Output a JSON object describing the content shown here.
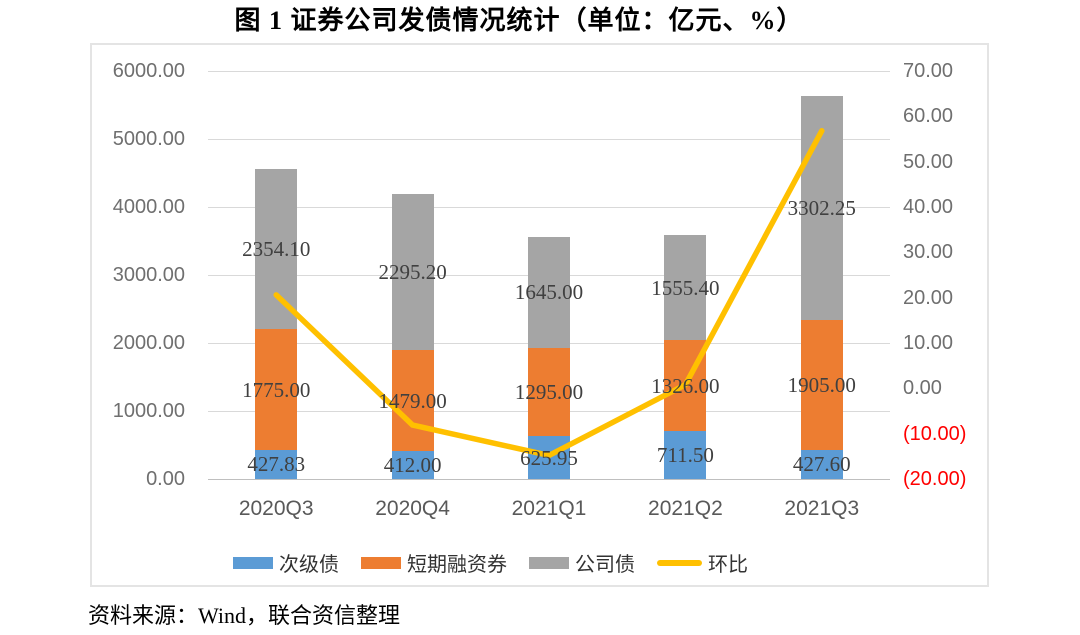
{
  "title": "图 1  证券公司发债情况统计（单位：亿元、%）",
  "source_note": "资料来源：Wind，联合资信整理",
  "colors": {
    "subordinated_debt_blue": "#5B9BD5",
    "short_term_notes_orange": "#ED7D31",
    "corporate_bonds_gray": "#A5A5A5",
    "mom_line_yellow": "#FFC000",
    "negative_tick_red": "#FF0000",
    "gridline": "#D9D9D9",
    "axis_line": "#BFBFBF",
    "axis_text": "#6F6F6F",
    "data_label_text": "#404040"
  },
  "chart_data": {
    "type": "bar",
    "subtype": "stacked-bars-with-line",
    "title": "图 1  证券公司发债情况统计（单位：亿元、%）",
    "categories": [
      "2020Q3",
      "2020Q4",
      "2021Q1",
      "2021Q2",
      "2021Q3"
    ],
    "series": [
      {
        "name": "次级债",
        "kind": "bar",
        "color": "#5B9BD5",
        "values": [
          427.83,
          412.0,
          625.95,
          711.5,
          427.6
        ],
        "labels": [
          "427.83",
          "412.00",
          "625.95",
          "711.50",
          "427.60"
        ]
      },
      {
        "name": "短期融资券",
        "kind": "bar",
        "color": "#ED7D31",
        "values": [
          1775.0,
          1479.0,
          1295.0,
          1326.0,
          1905.0
        ],
        "labels": [
          "1775.00",
          "1479.00",
          "1295.00",
          "1326.00",
          "1905.00"
        ]
      },
      {
        "name": "公司债",
        "kind": "bar",
        "color": "#A5A5A5",
        "values": [
          2354.1,
          2295.2,
          1645.0,
          1555.4,
          3302.25
        ],
        "labels": [
          "2354.10",
          "2295.20",
          "1645.00",
          "1555.40",
          "3302.25"
        ]
      },
      {
        "name": "环比",
        "kind": "line",
        "color": "#FFC000",
        "values": [
          20.6,
          -8.1,
          -14.8,
          0.8,
          56.8
        ]
      }
    ],
    "left_axis": {
      "min": 0,
      "max": 6000,
      "step": 1000,
      "ticks": [
        "6000.00",
        "5000.00",
        "4000.00",
        "3000.00",
        "2000.00",
        "1000.00",
        "0.00"
      ]
    },
    "right_axis": {
      "min": -20,
      "max": 70,
      "step": 10,
      "ticks": [
        {
          "label": "70.00",
          "negative": false
        },
        {
          "label": "60.00",
          "negative": false
        },
        {
          "label": "50.00",
          "negative": false
        },
        {
          "label": "40.00",
          "negative": false
        },
        {
          "label": "30.00",
          "negative": false
        },
        {
          "label": "20.00",
          "negative": false
        },
        {
          "label": "10.00",
          "negative": false
        },
        {
          "label": "0.00",
          "negative": false
        },
        {
          "label": "(10.00)",
          "negative": true
        },
        {
          "label": "(20.00)",
          "negative": true
        }
      ]
    },
    "grid": true,
    "legend_position": "bottom"
  }
}
